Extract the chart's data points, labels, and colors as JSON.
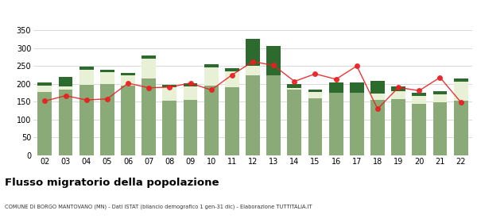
{
  "years": [
    "02",
    "03",
    "04",
    "05",
    "06",
    "07",
    "08",
    "09",
    "10",
    "11",
    "12",
    "13",
    "14",
    "15",
    "16",
    "17",
    "18",
    "19",
    "20",
    "21",
    "22"
  ],
  "iscritti_altri_comuni": [
    178,
    183,
    198,
    200,
    195,
    215,
    152,
    155,
    195,
    190,
    225,
    225,
    183,
    160,
    175,
    175,
    155,
    158,
    145,
    148,
    152
  ],
  "iscritti_estero": [
    18,
    10,
    42,
    32,
    28,
    55,
    38,
    38,
    50,
    45,
    25,
    0,
    5,
    18,
    0,
    0,
    18,
    22,
    22,
    22,
    55
  ],
  "iscritti_altri": [
    8,
    27,
    8,
    8,
    8,
    10,
    8,
    8,
    10,
    8,
    75,
    80,
    12,
    5,
    30,
    28,
    35,
    12,
    8,
    10,
    8
  ],
  "cancellati": [
    152,
    167,
    155,
    158,
    202,
    189,
    191,
    202,
    183,
    225,
    262,
    252,
    207,
    228,
    213,
    250,
    130,
    190,
    181,
    218,
    149
  ],
  "color_altri_comuni": "#8aaa78",
  "color_estero": "#e8f0d5",
  "color_altri": "#2d6a2d",
  "color_cancellati": "#e82020",
  "background_color": "#ffffff",
  "grid_color": "#cccccc",
  "title": "Flusso migratorio della popolazione",
  "subtitle": "COMUNE DI BORGO MANTOVANO (MN) - Dati ISTAT (bilancio demografico 1 gen-31 dic) - Elaborazione TUTTITALIA.IT",
  "ylim": [
    0,
    360
  ],
  "yticks": [
    0,
    50,
    100,
    150,
    200,
    250,
    300,
    350
  ]
}
